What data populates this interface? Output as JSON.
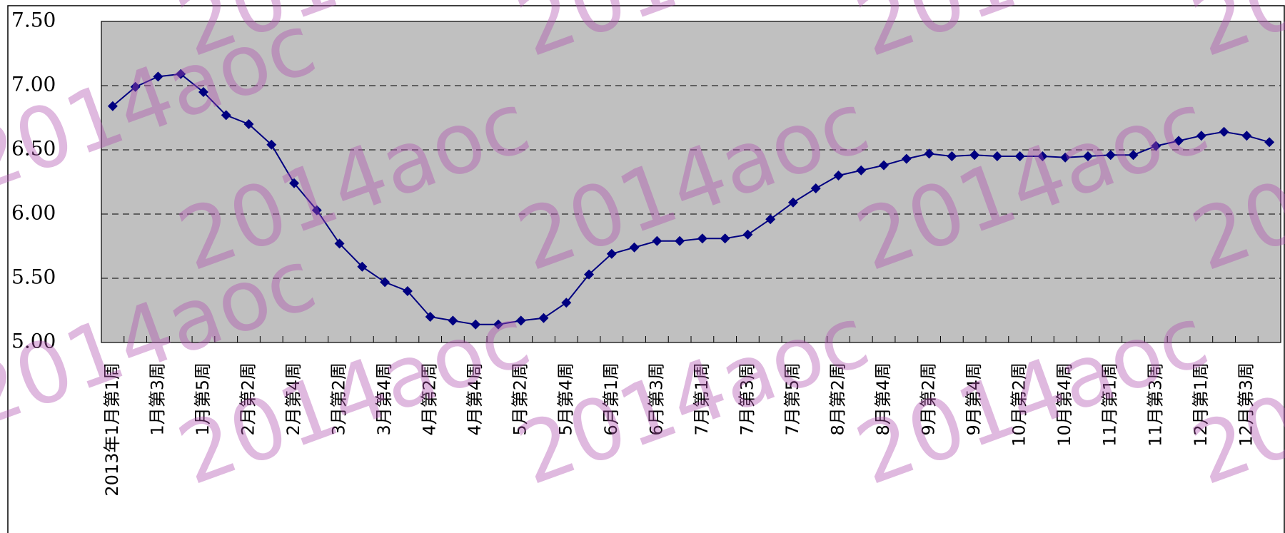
{
  "chart_data": {
    "type": "line",
    "watermark": "2014aoc",
    "categories": [
      "2013年1月第1周",
      null,
      "1月第3周",
      null,
      "1月第5周",
      null,
      "2月第2周",
      null,
      "2月第4周",
      null,
      "3月第2周",
      null,
      "3月第4周",
      null,
      "4月第2周",
      null,
      "4月第4周",
      null,
      "5月第2周",
      null,
      "5月第4周",
      null,
      "6月第1周",
      null,
      "6月第3周",
      null,
      "7月第1周",
      null,
      "7月第3周",
      null,
      "7月第5周",
      null,
      "8月第2周",
      null,
      "8月第4周",
      null,
      "9月第2周",
      null,
      "9月第4周",
      null,
      "10月第2周",
      null,
      "10月第4周",
      null,
      "11月第1周",
      null,
      "11月第3周",
      null,
      "12月第1周",
      null,
      "12月第3周",
      null
    ],
    "series": [
      {
        "color": "#000080",
        "values": [
          6.84,
          6.99,
          7.07,
          7.09,
          6.95,
          6.77,
          6.7,
          6.54,
          6.24,
          6.03,
          5.77,
          5.59,
          5.47,
          5.4,
          5.2,
          5.17,
          5.14,
          5.14,
          5.17,
          5.19,
          5.31,
          5.53,
          5.69,
          5.74,
          5.79,
          5.79,
          5.81,
          5.81,
          5.84,
          5.96,
          6.09,
          6.2,
          6.3,
          6.34,
          6.38,
          6.43,
          6.47,
          6.45,
          6.46,
          6.45,
          6.45,
          6.45,
          6.44,
          6.45,
          6.46,
          6.46,
          6.53,
          6.57,
          6.61,
          6.64,
          6.61,
          6.56
        ]
      }
    ],
    "ylim": [
      5,
      7.5
    ],
    "yticks": [
      {
        "value": 5,
        "label": "5.00"
      },
      {
        "value": 5.5,
        "label": "5.50"
      },
      {
        "value": 6,
        "label": "6.00"
      },
      {
        "value": 6.5,
        "label": "6.50"
      },
      {
        "value": 7,
        "label": "7.00"
      },
      {
        "value": 7.5,
        "label": "7.50"
      }
    ],
    "grid": true,
    "plot_background": "#c0c0c0"
  }
}
